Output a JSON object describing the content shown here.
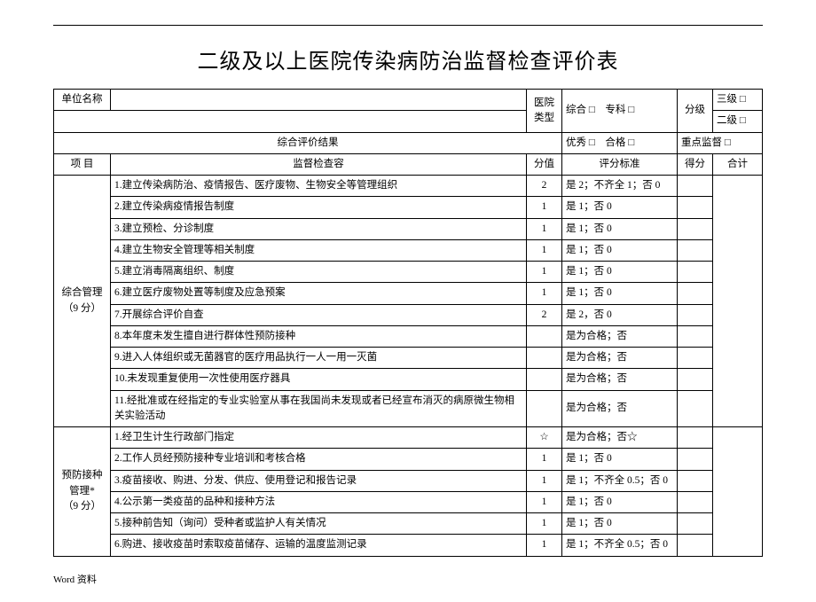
{
  "title": "二级及以上医院传染病防治监督检查评价表",
  "header": {
    "unit_label": "单位名称",
    "type_label": "医院类型",
    "type_opt1": "综合 □",
    "type_opt2": "专科  □",
    "grade_label": "分级",
    "grade_opt1": "三级 □",
    "grade_opt2": "二级 □"
  },
  "result_row": {
    "label": "综合评价结果",
    "excellent": "优秀 □",
    "pass": "合格 □",
    "focus": "重点监督 □"
  },
  "columns": {
    "project": "项  目",
    "content": "监督检查容",
    "value": "分值",
    "standard": "评分标准",
    "score": "得分",
    "total": "合计"
  },
  "sections": [
    {
      "name": "综合管理（9 分）",
      "rows": [
        {
          "content": "1.建立传染病防治、疫情报告、医疗废物、生物安全等管理组织",
          "value": "2",
          "std": "是 2；不齐全 1；否 0"
        },
        {
          "content": "2.建立传染病疫情报告制度",
          "value": "1",
          "std": "是 1；否 0"
        },
        {
          "content": "3.建立预检、分诊制度",
          "value": "1",
          "std": "是 1；否 0"
        },
        {
          "content": "4.建立生物安全管理等相关制度",
          "value": "1",
          "std": "是 1；否 0"
        },
        {
          "content": "5.建立消毒隔离组织、制度",
          "value": "1",
          "std": "是 1；否 0"
        },
        {
          "content": "6.建立医疗废物处置等制度及应急预案",
          "value": "1",
          "std": "是 1；否 0"
        },
        {
          "content": "7.开展综合评价自查",
          "value": "2",
          "std": "是 2，否 0"
        },
        {
          "content": "8.本年度未发生擅自进行群体性预防接种",
          "value": "",
          "std": "是为合格；否"
        },
        {
          "content": "9.进入人体组织或无菌器官的医疗用品执行一人一用一灭菌",
          "value": "",
          "std": "是为合格；否"
        },
        {
          "content": "10.未发现重复使用一次性使用医疗器具",
          "value": "",
          "std": "是为合格；否"
        },
        {
          "content": "11.经批准或在经指定的专业实验室从事在我国尚未发现或者已经宣布消灭的病原微生物相关实验活动",
          "value": "",
          "std": "是为合格；否"
        }
      ]
    },
    {
      "name": "预防接种管理*（9 分）",
      "rows": [
        {
          "content": "1.经卫生计生行政部门指定",
          "value": "☆",
          "std": "是为合格；否☆"
        },
        {
          "content": "2.工作人员经预防接种专业培训和考核合格",
          "value": "1",
          "std": "是 1；否 0"
        },
        {
          "content": "3.疫苗接收、购进、分发、供应、使用登记和报告记录",
          "value": "1",
          "std": "是 1；不齐全 0.5；否 0"
        },
        {
          "content": "4.公示第一类疫苗的品种和接种方法",
          "value": "1",
          "std": "是 1；否 0"
        },
        {
          "content": "5.接种前告知（询问）受种者或监护人有关情况",
          "value": "1",
          "std": "是 1；否 0"
        },
        {
          "content": "6.购进、接收疫苗时索取疫苗储存、运输的温度监测记录",
          "value": "1",
          "std": "是 1；不齐全 0.5；否 0"
        }
      ]
    }
  ],
  "footer": "Word  资料"
}
